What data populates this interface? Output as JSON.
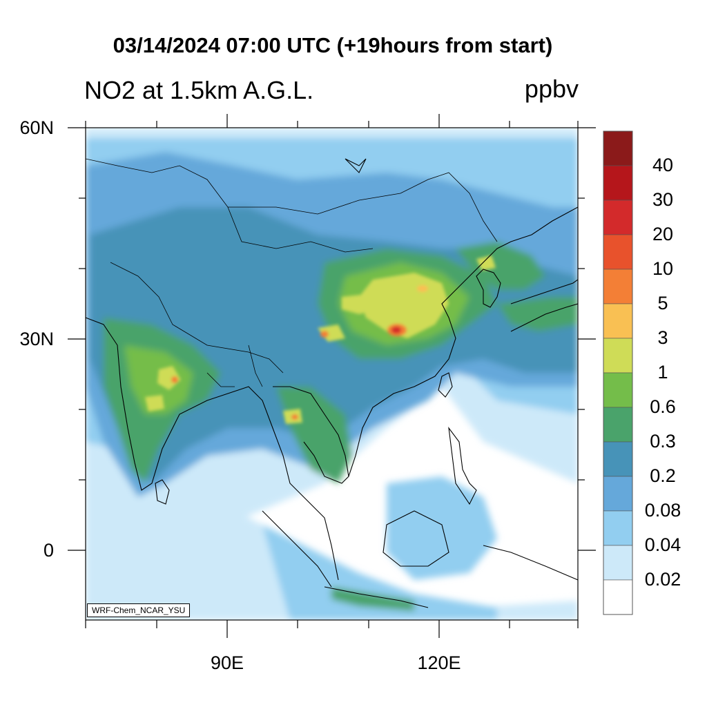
{
  "title": "03/14/2024 07:00 UTC (+19hours from start)",
  "subtitle": "NO2 at 1.5km A.G.L.",
  "units": "ppbv",
  "credit": "WRF-Chem_NCAR_YSU",
  "lat_labels": [
    "60N",
    "30N",
    "0"
  ],
  "lon_labels": [
    "90E",
    "120E"
  ],
  "colorbar": {
    "labels": [
      "40",
      "30",
      "20",
      "10",
      "5",
      "3",
      "1",
      "0.6",
      "0.3",
      "0.2",
      "0.08",
      "0.04",
      "0.02"
    ],
    "colors": [
      "#8b1a1a",
      "#b5161b",
      "#d32a2b",
      "#e8522c",
      "#f37f36",
      "#f9c053",
      "#cfdc57",
      "#74bd4a",
      "#4aa36b",
      "#4793b8",
      "#65a8da",
      "#92cef0",
      "#cde9f9",
      "#ffffff"
    ]
  },
  "colors": {
    "ocean_low": "#cde9f9",
    "ocean_mid": "#92cef0",
    "land_base": "#65a8da",
    "land_mid": "#4793b8",
    "green": "#4aa36b",
    "bright_green": "#74bd4a",
    "yellow_green": "#cfdc57",
    "orange": "#f37f36",
    "red": "#d32a2b"
  }
}
